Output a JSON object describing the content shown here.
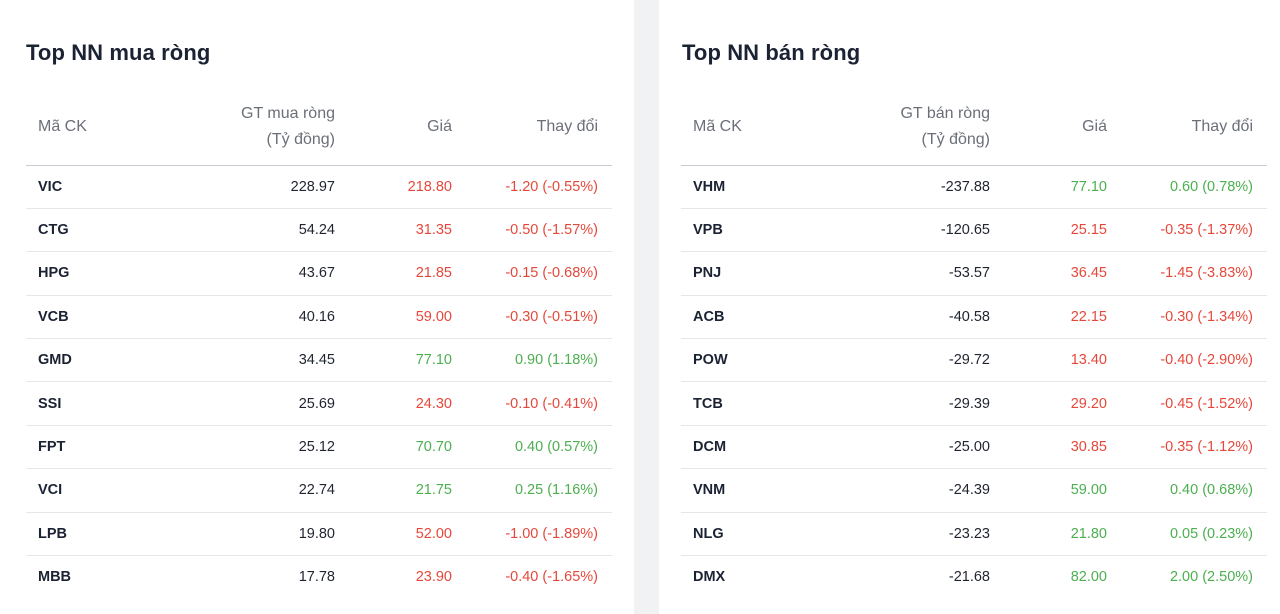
{
  "colors": {
    "up": "#4caf50",
    "down": "#e5483b"
  },
  "buy": {
    "title": "Top NN mua ròng",
    "headers": {
      "code": "Mã CK",
      "value_line1": "GT mua ròng",
      "value_line2": "(Tỷ đồng)",
      "price": "Giá",
      "change": "Thay đổi"
    },
    "rows": [
      {
        "code": "VIC",
        "value": "228.97",
        "price": "218.80",
        "change": "-1.20 (-0.55%)",
        "trend": "down"
      },
      {
        "code": "CTG",
        "value": "54.24",
        "price": "31.35",
        "change": "-0.50 (-1.57%)",
        "trend": "down"
      },
      {
        "code": "HPG",
        "value": "43.67",
        "price": "21.85",
        "change": "-0.15 (-0.68%)",
        "trend": "down"
      },
      {
        "code": "VCB",
        "value": "40.16",
        "price": "59.00",
        "change": "-0.30 (-0.51%)",
        "trend": "down"
      },
      {
        "code": "GMD",
        "value": "34.45",
        "price": "77.10",
        "change": "0.90 (1.18%)",
        "trend": "up"
      },
      {
        "code": "SSI",
        "value": "25.69",
        "price": "24.30",
        "change": "-0.10 (-0.41%)",
        "trend": "down"
      },
      {
        "code": "FPT",
        "value": "25.12",
        "price": "70.70",
        "change": "0.40 (0.57%)",
        "trend": "up"
      },
      {
        "code": "VCI",
        "value": "22.74",
        "price": "21.75",
        "change": "0.25 (1.16%)",
        "trend": "up"
      },
      {
        "code": "LPB",
        "value": "19.80",
        "price": "52.00",
        "change": "-1.00 (-1.89%)",
        "trend": "down"
      },
      {
        "code": "MBB",
        "value": "17.78",
        "price": "23.90",
        "change": "-0.40 (-1.65%)",
        "trend": "down"
      }
    ]
  },
  "sell": {
    "title": "Top NN bán ròng",
    "headers": {
      "code": "Mã CK",
      "value_line1": "GT bán ròng",
      "value_line2": "(Tỷ đồng)",
      "price": "Giá",
      "change": "Thay đổi"
    },
    "rows": [
      {
        "code": "VHM",
        "value": "-237.88",
        "price": "77.10",
        "change": "0.60 (0.78%)",
        "trend": "up"
      },
      {
        "code": "VPB",
        "value": "-120.65",
        "price": "25.15",
        "change": "-0.35 (-1.37%)",
        "trend": "down"
      },
      {
        "code": "PNJ",
        "value": "-53.57",
        "price": "36.45",
        "change": "-1.45 (-3.83%)",
        "trend": "down"
      },
      {
        "code": "ACB",
        "value": "-40.58",
        "price": "22.15",
        "change": "-0.30 (-1.34%)",
        "trend": "down"
      },
      {
        "code": "POW",
        "value": "-29.72",
        "price": "13.40",
        "change": "-0.40 (-2.90%)",
        "trend": "down"
      },
      {
        "code": "TCB",
        "value": "-29.39",
        "price": "29.20",
        "change": "-0.45 (-1.52%)",
        "trend": "down"
      },
      {
        "code": "DCM",
        "value": "-25.00",
        "price": "30.85",
        "change": "-0.35 (-1.12%)",
        "trend": "down"
      },
      {
        "code": "VNM",
        "value": "-24.39",
        "price": "59.00",
        "change": "0.40 (0.68%)",
        "trend": "up"
      },
      {
        "code": "NLG",
        "value": "-23.23",
        "price": "21.80",
        "change": "0.05 (0.23%)",
        "trend": "up"
      },
      {
        "code": "DMX",
        "value": "-21.68",
        "price": "82.00",
        "change": "2.00 (2.50%)",
        "trend": "up"
      }
    ]
  }
}
